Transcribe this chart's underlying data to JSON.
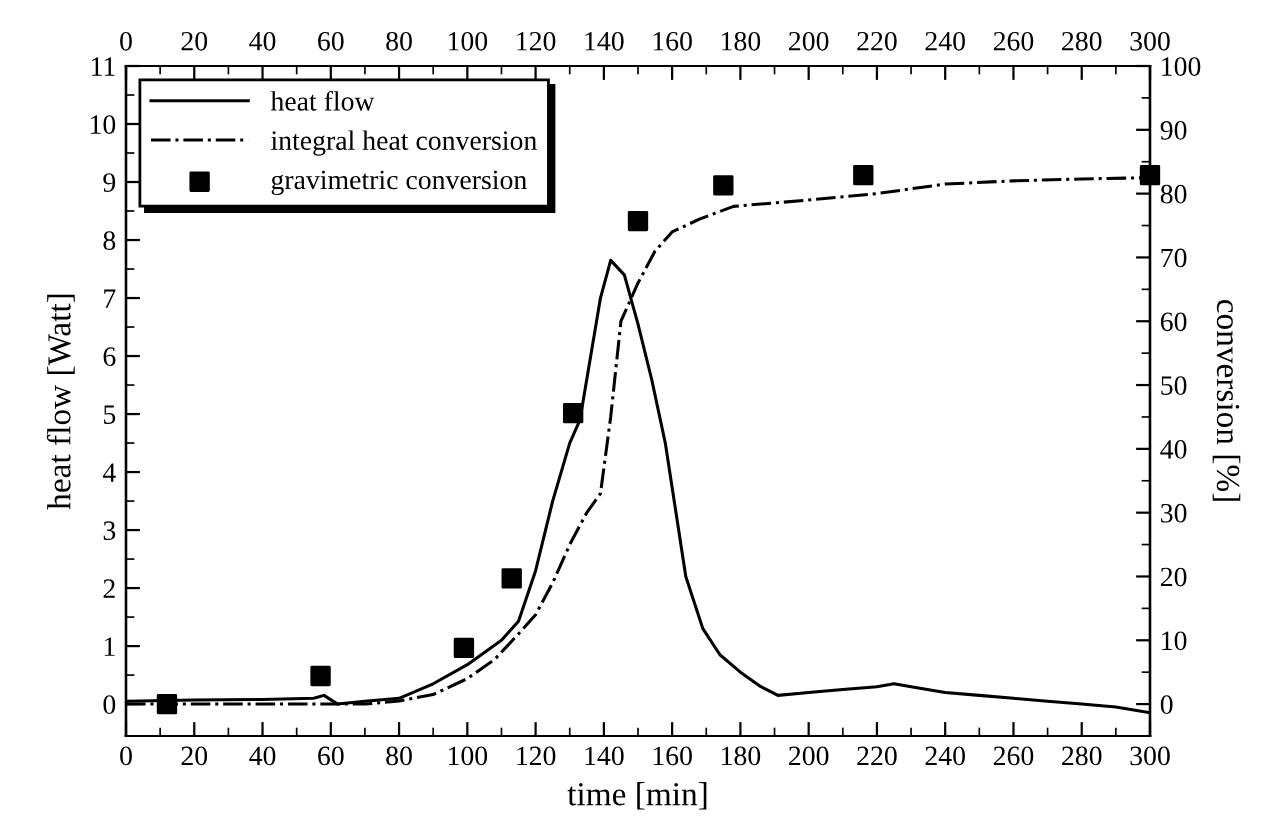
{
  "chart_data": {
    "type": "line",
    "xlabel": "time [min]",
    "ylabel": "heat flow [Watt]",
    "y2label": "conversion [%]",
    "xlim": [
      0,
      300
    ],
    "xticks": [
      0,
      20,
      40,
      60,
      80,
      100,
      120,
      140,
      160,
      180,
      200,
      220,
      240,
      260,
      280,
      300
    ],
    "x2lim": [
      0,
      300
    ],
    "x2ticks": [
      0,
      20,
      40,
      60,
      80,
      100,
      120,
      140,
      160,
      180,
      200,
      220,
      240,
      260,
      280,
      300
    ],
    "ylim": [
      -0.55,
      11
    ],
    "yticks": [
      0,
      1,
      2,
      3,
      4,
      5,
      6,
      7,
      8,
      9,
      10,
      11
    ],
    "y2lim": [
      -5,
      100
    ],
    "y2ticks": [
      0,
      10,
      20,
      30,
      40,
      50,
      60,
      70,
      80,
      90,
      100
    ],
    "grid": false,
    "legend": "top left",
    "series": [
      {
        "name": "heat flow",
        "color": "#000000",
        "line_style": "solid",
        "marker": "none",
        "x": [
          0,
          20,
          40,
          55,
          58,
          62,
          70,
          80,
          90,
          100,
          110,
          115,
          120,
          125,
          130,
          133,
          139,
          142,
          146,
          150,
          154,
          158,
          164,
          169,
          174,
          180,
          186,
          191,
          200,
          210,
          220,
          225,
          230,
          240,
          250,
          260,
          270,
          280,
          290,
          300
        ],
        "values": [
          0.05,
          0.07,
          0.08,
          0.1,
          0.15,
          0.0,
          0.05,
          0.1,
          0.35,
          0.68,
          1.1,
          1.43,
          2.3,
          3.5,
          4.5,
          4.9,
          7.0,
          7.65,
          7.4,
          6.55,
          5.6,
          4.5,
          2.2,
          1.3,
          0.85,
          0.55,
          0.3,
          0.15,
          0.2,
          0.25,
          0.3,
          0.35,
          0.3,
          0.2,
          0.15,
          0.1,
          0.05,
          0.0,
          -0.05,
          -0.15
        ]
      },
      {
        "name": "integral heat conversion",
        "color": "#000000",
        "line_style": "dashdot",
        "marker": "none",
        "axis": "y2",
        "x": [
          0,
          40,
          70,
          80,
          90,
          100,
          108,
          115,
          120,
          125,
          130,
          135,
          139,
          142,
          145,
          150,
          155,
          160,
          168,
          178,
          200,
          220,
          240,
          260,
          280,
          300
        ],
        "values": [
          0,
          0,
          0,
          0.5,
          1.5,
          4,
          7,
          11,
          14,
          19,
          25,
          30,
          33,
          45,
          60,
          66,
          71,
          74,
          76,
          78,
          79,
          80,
          81.5,
          82,
          82.3,
          82.5
        ]
      },
      {
        "name": "gravimetric conversion",
        "type": "scatter",
        "color": "#000000",
        "marker": "square",
        "axis": "y2",
        "x": [
          12,
          57,
          99,
          113,
          131,
          150,
          175,
          216,
          300
        ],
        "values": [
          0,
          4.4,
          8.8,
          19.7,
          45.6,
          75.7,
          81.3,
          82.9,
          82.9
        ]
      }
    ]
  }
}
